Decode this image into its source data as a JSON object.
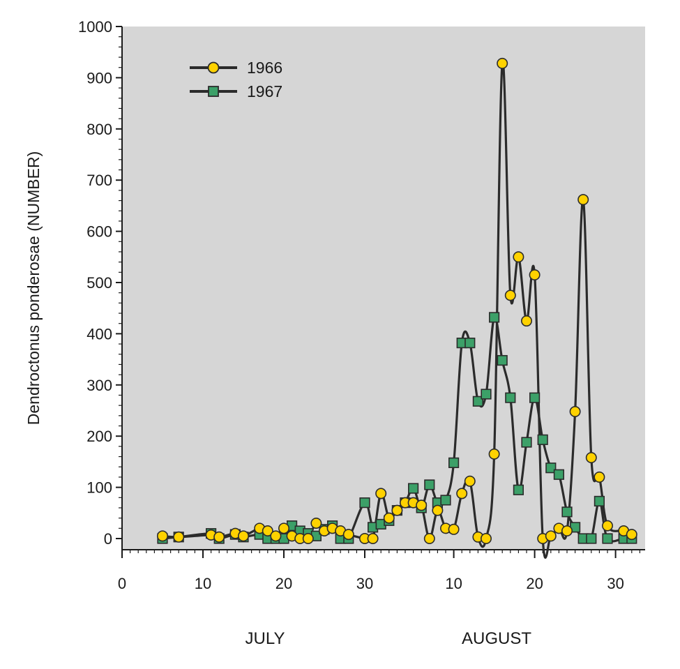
{
  "chart_data": {
    "type": "line",
    "title": "",
    "ylabel": "Dendroctonus ponderosae (NUMBER)",
    "ylim": [
      0,
      1000
    ],
    "yticks": [
      0,
      100,
      200,
      300,
      400,
      500,
      600,
      700,
      800,
      900,
      1000
    ],
    "xlim": [
      0,
      65
    ],
    "x_tick_labels": [
      "0",
      "10",
      "20",
      "30",
      "10",
      "20",
      "30"
    ],
    "month_labels": [
      "JULY",
      "AUGUST"
    ],
    "grid": false,
    "legend_position": "top-left",
    "background_color": "#d6d6d6",
    "line_color": "#2b2b2b",
    "series": [
      {
        "name": "1966",
        "marker": "circle",
        "color": "#ffd200",
        "x": [
          "Jul 5",
          "Jul 7",
          "Jul 11",
          "Jul 12",
          "Jul 14",
          "Jul 15",
          "Jul 17",
          "Jul 18",
          "Jul 19",
          "Jul 20",
          "Jul 21",
          "Jul 22",
          "Jul 23",
          "Jul 24",
          "Jul 25",
          "Jul 26",
          "Jul 27",
          "Jul 28",
          "Jul 30",
          "Jul 31",
          "Aug 1",
          "Aug 2",
          "Aug 3",
          "Aug 4",
          "Aug 5",
          "Aug 6",
          "Aug 7",
          "Aug 8",
          "Aug 9",
          "Aug 10",
          "Aug 11",
          "Aug 12",
          "Aug 13",
          "Aug 14",
          "Aug 15",
          "Aug 16",
          "Aug 17",
          "Aug 18",
          "Aug 19",
          "Aug 20",
          "Aug 21",
          "Aug 22",
          "Aug 23",
          "Aug 24",
          "Aug 25",
          "Aug 26",
          "Aug 27",
          "Aug 28",
          "Aug 29",
          "Aug 31",
          "Sep 1"
        ],
        "values": [
          5,
          3,
          7,
          3,
          10,
          5,
          20,
          15,
          5,
          20,
          5,
          0,
          0,
          30,
          15,
          20,
          15,
          8,
          0,
          0,
          88,
          40,
          55,
          70,
          70,
          65,
          0,
          55,
          20,
          18,
          88,
          112,
          3,
          0,
          165,
          928,
          475,
          550,
          425,
          515,
          0,
          5,
          20,
          15,
          248,
          662,
          158,
          120,
          25,
          15,
          8
        ]
      },
      {
        "name": "1967",
        "marker": "square",
        "color": "#3ca068",
        "x": [
          "Jul 5",
          "Jul 7",
          "Jul 11",
          "Jul 12",
          "Jul 14",
          "Jul 15",
          "Jul 17",
          "Jul 18",
          "Jul 19",
          "Jul 20",
          "Jul 21",
          "Jul 22",
          "Jul 23",
          "Jul 24",
          "Jul 25",
          "Jul 26",
          "Jul 27",
          "Jul 28",
          "Jul 30",
          "Jul 31",
          "Aug 1",
          "Aug 2",
          "Aug 3",
          "Aug 4",
          "Aug 5",
          "Aug 6",
          "Aug 7",
          "Aug 8",
          "Aug 9",
          "Aug 10",
          "Aug 11",
          "Aug 12",
          "Aug 13",
          "Aug 14",
          "Aug 15",
          "Aug 16",
          "Aug 17",
          "Aug 18",
          "Aug 19",
          "Aug 20",
          "Aug 21",
          "Aug 22",
          "Aug 23",
          "Aug 24",
          "Aug 25",
          "Aug 26",
          "Aug 27",
          "Aug 28",
          "Aug 29",
          "Aug 31",
          "Sep 1"
        ],
        "values": [
          0,
          3,
          10,
          0,
          8,
          3,
          8,
          0,
          0,
          0,
          25,
          15,
          10,
          5,
          18,
          25,
          0,
          0,
          70,
          22,
          28,
          35,
          55,
          70,
          98,
          60,
          105,
          70,
          75,
          148,
          382,
          382,
          268,
          282,
          432,
          348,
          275,
          95,
          188,
          275,
          193,
          138,
          125,
          52,
          22,
          0,
          0,
          73,
          0,
          0,
          0
        ]
      }
    ]
  }
}
